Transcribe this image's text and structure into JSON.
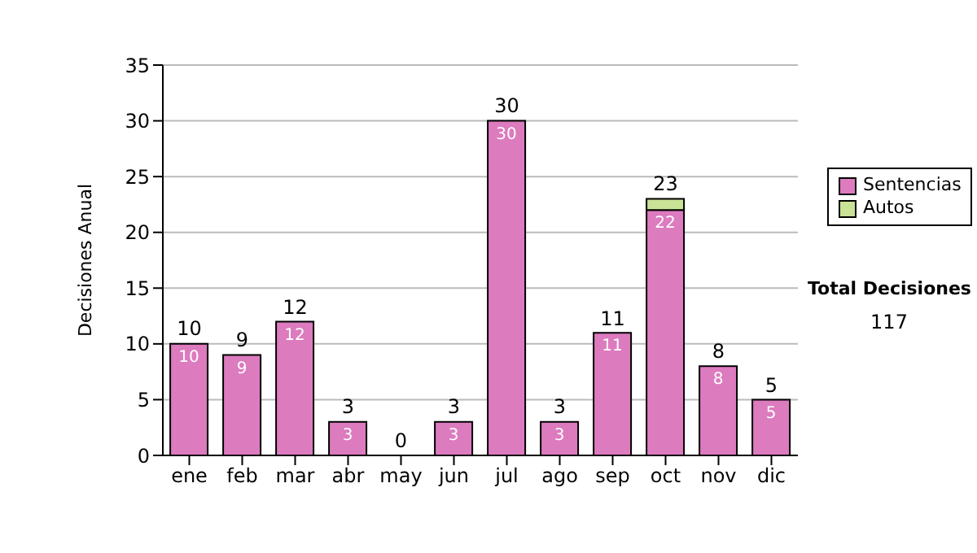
{
  "chart_data": {
    "type": "bar",
    "ylabel": "Decisiones Anual",
    "categories": [
      "ene",
      "feb",
      "mar",
      "abr",
      "may",
      "jun",
      "jul",
      "ago",
      "sep",
      "oct",
      "nov",
      "dic"
    ],
    "series": [
      {
        "name": "Sentencias",
        "color": "#dd7bbf",
        "values": [
          10,
          9,
          12,
          3,
          0,
          3,
          30,
          3,
          11,
          22,
          8,
          5
        ],
        "value_labels": [
          "10",
          "9",
          "12",
          "3",
          null,
          "3",
          "30",
          "3",
          "11",
          "22",
          "8",
          "5"
        ]
      },
      {
        "name": "Autos",
        "color": "#c9e295",
        "values": [
          0,
          0,
          0,
          0,
          0,
          0,
          0,
          0,
          0,
          1,
          0,
          0
        ]
      }
    ],
    "stacked": true,
    "totals": [
      "10",
      "9",
      "12",
      "3",
      "0",
      "3",
      "30",
      "3",
      "11",
      "23",
      "8",
      "5"
    ],
    "ylim": [
      0,
      35
    ],
    "yticks": [
      0,
      5,
      10,
      15,
      20,
      25,
      30,
      35
    ],
    "grid": "y",
    "legend": "right",
    "annotations": [
      "Total Decisiones",
      "117"
    ]
  }
}
